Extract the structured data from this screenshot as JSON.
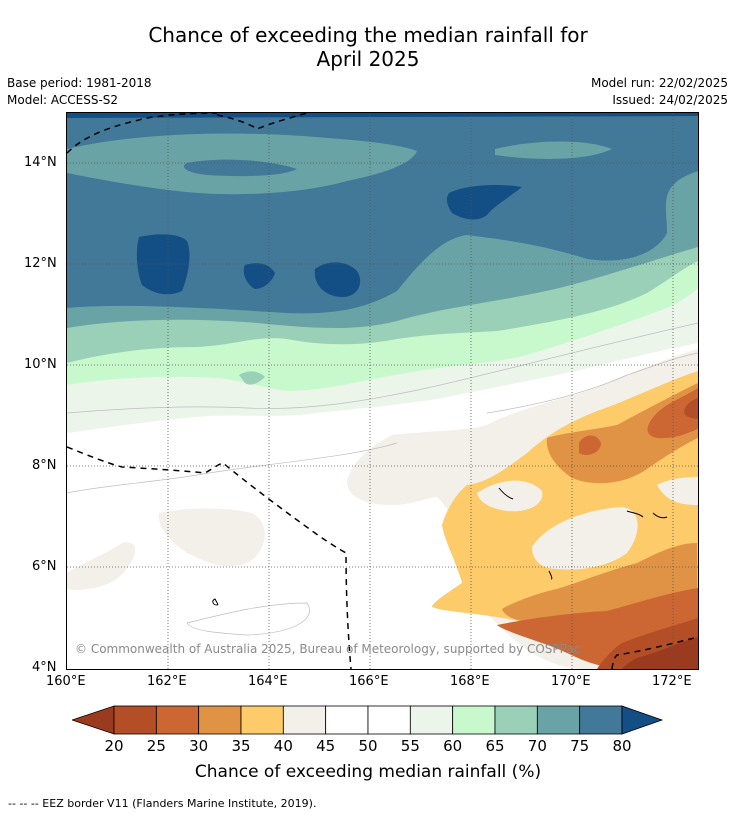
{
  "title_line1": "Chance of exceeding the median rainfall for",
  "title_line2": "April 2025",
  "base_period": "Base period: 1981-2018",
  "model": "Model: ACCESS-S2",
  "model_run": "Model run: 22/02/2025",
  "issued": "Issued: 24/02/2025",
  "copyright": "© Commonwealth of Australia 2025, Bureau of Meteorology, supported by COSPPac",
  "x_ticks": [
    "160°E",
    "162°E",
    "164°E",
    "166°E",
    "168°E",
    "170°E",
    "172°E"
  ],
  "y_ticks": [
    "14°N",
    "12°N",
    "10°N",
    "8°N",
    "6°N",
    "4°N"
  ],
  "colorbar": {
    "labels": [
      "20",
      "25",
      "30",
      "35",
      "40",
      "45",
      "50",
      "55",
      "60",
      "65",
      "70",
      "75",
      "80"
    ],
    "colors": [
      "#9a3a1e",
      "#b44e26",
      "#cc6632",
      "#e09245",
      "#fdcb69",
      "#f3efe9",
      "#ffffff",
      "#ffffff",
      "#ebf5ea",
      "#c8f9cc",
      "#9bd0b8",
      "#6aa3a6",
      "#427898",
      "#134f85"
    ],
    "title": "Chance of exceeding median rainfall (%)"
  },
  "footnote": "--  --  -- EEZ border V11 (Flanders Marine Institute, 2019).",
  "map": {
    "lon_range": [
      160,
      172.5
    ],
    "lat_range": [
      4,
      15
    ],
    "colors": {
      "c75_80": "#427898",
      "c80": "#134f85",
      "c70_75": "#6aa3a6",
      "c65_70": "#9bd0b8",
      "c60_65": "#c8f9cc",
      "c55_60": "#ebf5ea",
      "c50_55": "#ffffff",
      "c40_45": "#f3efe9",
      "c35_40": "#fdcb69",
      "c30_35": "#e09245",
      "c25_30": "#cc6632",
      "c20_25": "#b44e26",
      "c15_20": "#9a3a1e"
    }
  }
}
